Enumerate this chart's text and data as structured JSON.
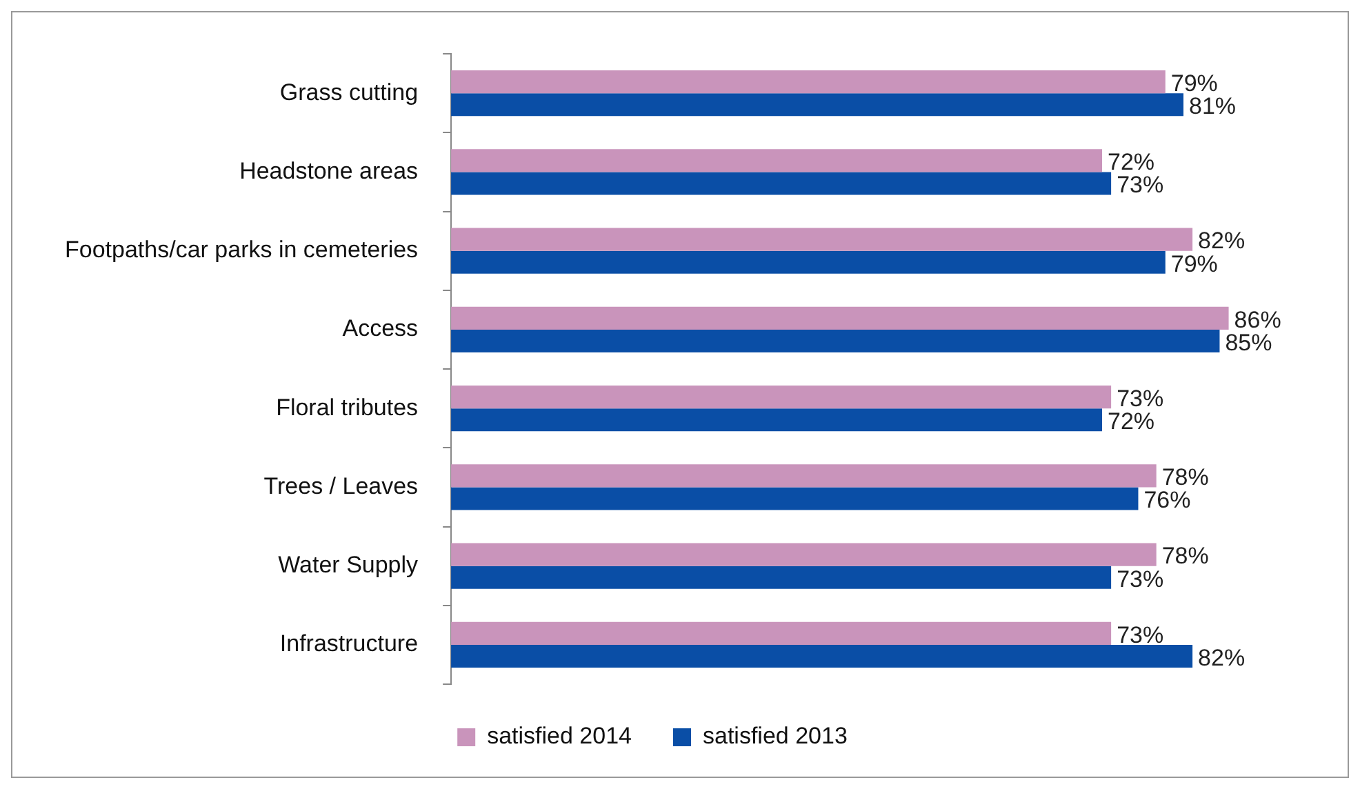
{
  "chart_data": {
    "type": "bar",
    "orientation": "horizontal",
    "categories": [
      "Grass cutting",
      "Headstone areas",
      "Footpaths/car parks in cemeteries",
      "Access",
      "Floral tributes",
      "Trees / Leaves",
      "Water Supply",
      "Infrastructure"
    ],
    "series": [
      {
        "name": "satisfied 2014",
        "color": "#c994bb",
        "values": [
          79,
          72,
          82,
          86,
          73,
          78,
          78,
          73
        ],
        "value_labels": [
          "79%",
          "72%",
          "82%",
          "86%",
          "73%",
          "78%",
          "78%",
          "73%"
        ]
      },
      {
        "name": "satisfied 2013",
        "color": "#0a4ea6",
        "values": [
          81,
          73,
          79,
          85,
          72,
          76,
          73,
          82
        ],
        "value_labels": [
          "81%",
          "73%",
          "79%",
          "85%",
          "72%",
          "76%",
          "73%",
          "82%"
        ]
      }
    ],
    "legend": "bottom"
  }
}
